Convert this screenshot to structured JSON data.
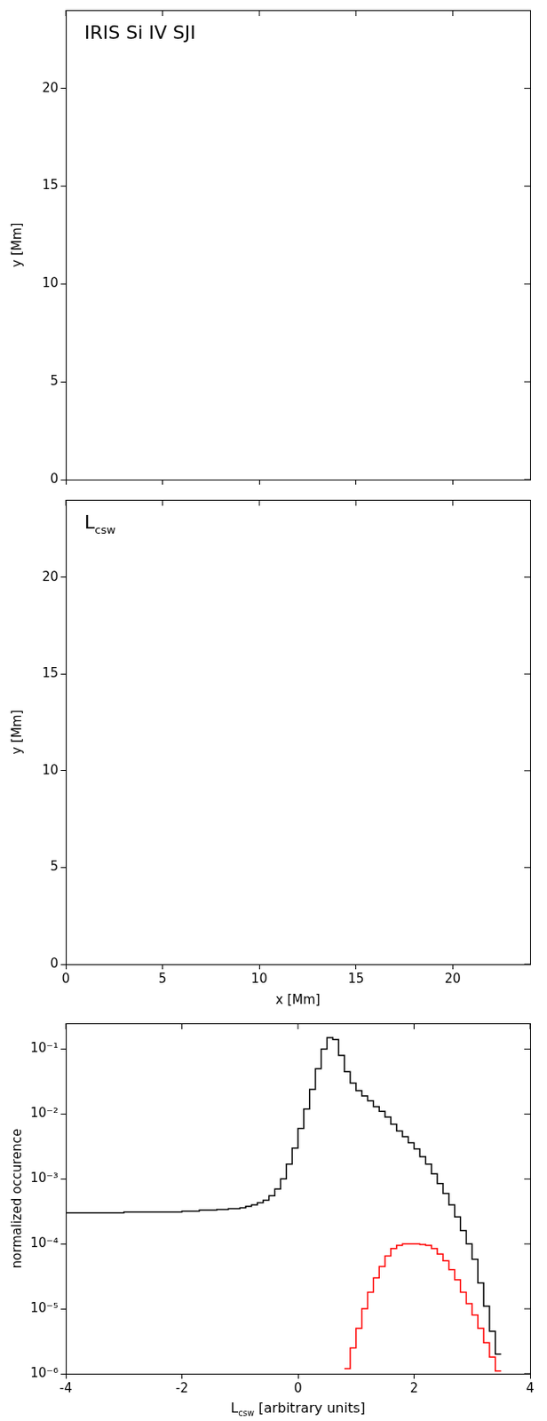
{
  "chart_data": [
    {
      "type": "image",
      "annotation": "IRIS Si IV SJI",
      "ylabel": "y [Mm]",
      "xlim": [
        0,
        24
      ],
      "ylim": [
        0,
        24
      ],
      "xticks": [
        0,
        5,
        10,
        15,
        20
      ],
      "yticks": [
        0,
        5,
        10,
        15,
        20
      ],
      "tick_labels": "y",
      "grid": false
    },
    {
      "type": "image",
      "annotation": {
        "text": "L",
        "sub": "csw"
      },
      "xlabel": "x [Mm]",
      "ylabel": "y [Mm]",
      "xlim": [
        0,
        24
      ],
      "ylim": [
        0,
        24
      ],
      "xticks": [
        0,
        5,
        10,
        15,
        20
      ],
      "yticks": [
        0,
        5,
        10,
        15,
        20
      ],
      "grid": false
    },
    {
      "type": "histogram",
      "xlabel": {
        "text": "L",
        "sub": "csw",
        "suffix": " [arbitrary units]"
      },
      "ylabel": "normalized occurence",
      "log": "y",
      "grid": false,
      "xlim": [
        -4,
        4
      ],
      "xticks": [
        -4,
        -2,
        0,
        2,
        4
      ],
      "ylim": [
        1e-06,
        0.25
      ],
      "yticks": [
        {
          "value": 1e-06,
          "label": "10⁻⁶"
        },
        {
          "value": 1e-05,
          "label": "10⁻⁵"
        },
        {
          "value": 0.0001,
          "label": "10⁻⁴"
        },
        {
          "value": 0.001,
          "label": "10⁻³"
        },
        {
          "value": 0.01,
          "label": "10⁻²"
        },
        {
          "value": 0.1,
          "label": "10⁻¹"
        }
      ],
      "bins": [
        -4.0,
        -3.9,
        -3.8,
        -3.7,
        -3.6,
        -3.5,
        -3.4,
        -3.3,
        -3.2,
        -3.1,
        -3.0,
        -2.9,
        -2.8,
        -2.7,
        -2.6,
        -2.5,
        -2.4,
        -2.3,
        -2.2,
        -2.1,
        -2.0,
        -1.9,
        -1.8,
        -1.7,
        -1.6,
        -1.5,
        -1.4,
        -1.3,
        -1.2,
        -1.1,
        -1.0,
        -0.9,
        -0.8,
        -0.7,
        -0.6,
        -0.5,
        -0.4,
        -0.3,
        -0.2,
        -0.1,
        0.0,
        0.1,
        0.2,
        0.3,
        0.4,
        0.5,
        0.6,
        0.7,
        0.8,
        0.9,
        1.0,
        1.1,
        1.2,
        1.3,
        1.4,
        1.5,
        1.6,
        1.7,
        1.8,
        1.9,
        2.0,
        2.1,
        2.2,
        2.3,
        2.4,
        2.5,
        2.6,
        2.7,
        2.8,
        2.9,
        3.0,
        3.1,
        3.2,
        3.3,
        3.4,
        3.5
      ],
      "series": [
        {
          "color": "#000000",
          "line_style": "solid",
          "values": [
            0.0003,
            0.0003,
            0.0003,
            0.0003,
            0.0003,
            0.0003,
            0.0003,
            0.0003,
            0.0003,
            0.0003,
            0.00031,
            0.00031,
            0.00031,
            0.00031,
            0.00031,
            0.00031,
            0.00031,
            0.00031,
            0.00031,
            0.00031,
            0.00032,
            0.00032,
            0.00032,
            0.00033,
            0.00033,
            0.00033,
            0.00034,
            0.00034,
            0.00035,
            0.00035,
            0.00036,
            0.00038,
            0.0004,
            0.00043,
            0.00047,
            0.00055,
            0.0007,
            0.001,
            0.0017,
            0.003,
            0.006,
            0.012,
            0.024,
            0.05,
            0.1,
            0.15,
            0.14,
            0.08,
            0.045,
            0.03,
            0.023,
            0.019,
            0.016,
            0.013,
            0.011,
            0.009,
            0.007,
            0.0055,
            0.0045,
            0.0036,
            0.0029,
            0.0022,
            0.0017,
            0.0012,
            0.00085,
            0.0006,
            0.0004,
            0.00026,
            0.00016,
            0.0001,
            5.8e-05,
            2.5e-05,
            1.1e-05,
            4.5e-06,
            2e-06
          ]
        },
        {
          "color": "#ff0000",
          "line_style": "solid",
          "values": [
            null,
            null,
            null,
            null,
            null,
            null,
            null,
            null,
            null,
            null,
            null,
            null,
            null,
            null,
            null,
            null,
            null,
            null,
            null,
            null,
            null,
            null,
            null,
            null,
            null,
            null,
            null,
            null,
            null,
            null,
            null,
            null,
            null,
            null,
            null,
            null,
            null,
            null,
            null,
            null,
            null,
            null,
            null,
            null,
            null,
            null,
            null,
            null,
            1.2e-06,
            2.5e-06,
            5e-06,
            1e-05,
            1.8e-05,
            3e-05,
            4.5e-05,
            6.5e-05,
            8.5e-05,
            9.5e-05,
            0.0001,
            0.0001,
            0.0001,
            9.8e-05,
            9.5e-05,
            8.5e-05,
            7e-05,
            5.5e-05,
            4e-05,
            2.8e-05,
            1.8e-05,
            1.2e-05,
            8e-06,
            5e-06,
            3e-06,
            1.8e-06,
            1.1e-06
          ]
        }
      ]
    }
  ]
}
